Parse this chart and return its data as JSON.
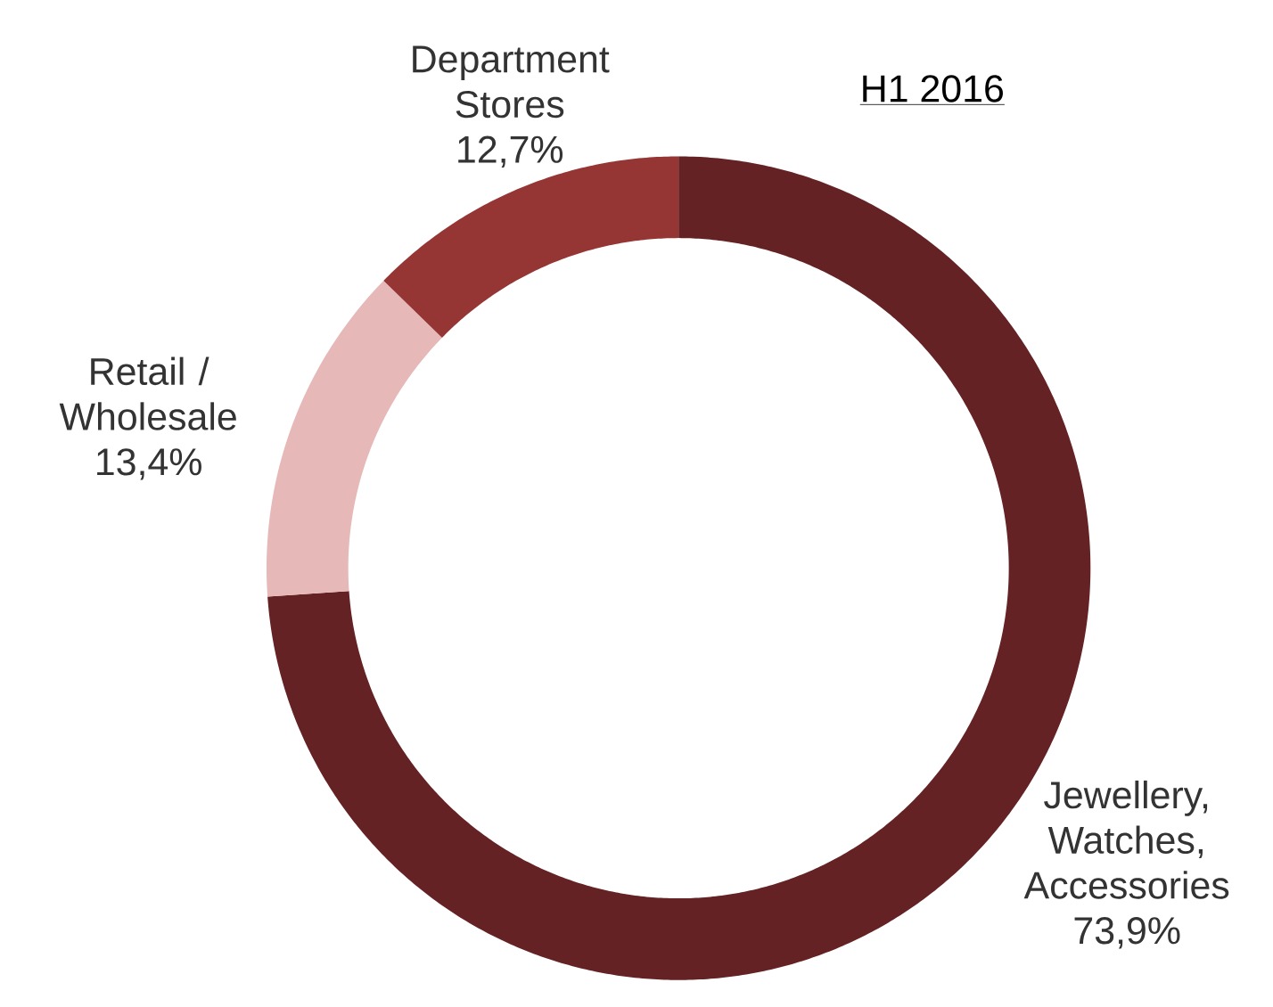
{
  "chart_data": {
    "type": "donut",
    "title": "H1 2016",
    "categories": [
      "Jewellery, Watches, Accessories",
      "Retail / Wholesale",
      "Department Stores"
    ],
    "values": [
      73.9,
      13.4,
      12.7
    ],
    "value_labels": [
      "73,9%",
      "13,4%",
      "12,7%"
    ],
    "colors": [
      "#652224",
      "#e6b8b7",
      "#963634"
    ]
  }
}
